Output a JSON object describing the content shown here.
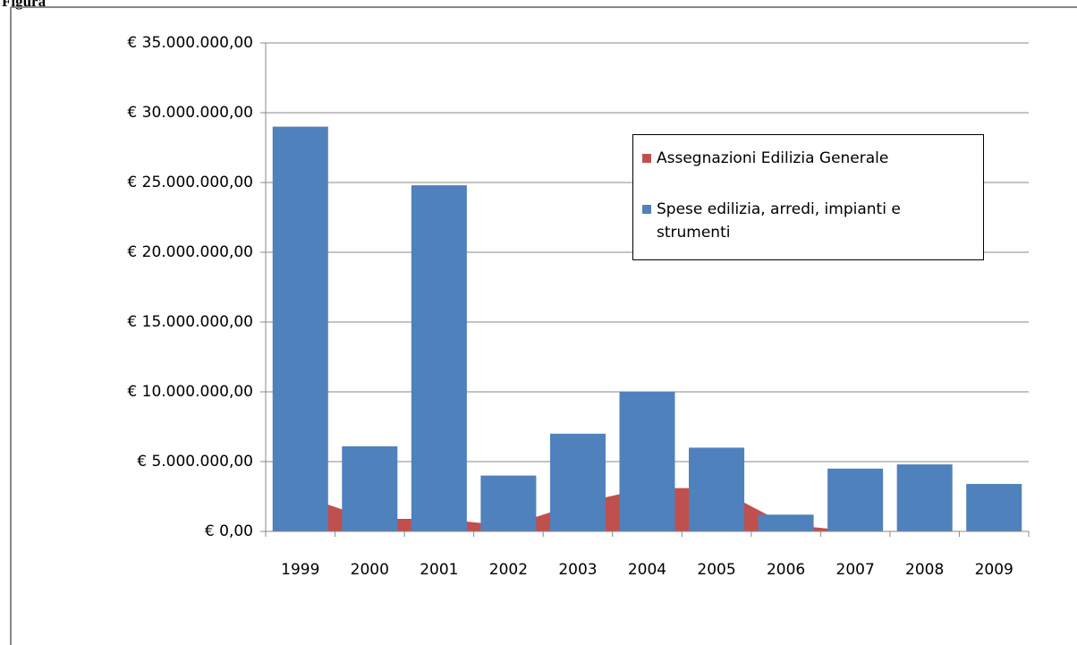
{
  "caption": "Figura",
  "chart_data": {
    "type": "bar",
    "categories": [
      "1999",
      "2000",
      "2001",
      "2002",
      "2003",
      "2004",
      "2005",
      "2006",
      "2007",
      "2008",
      "2009"
    ],
    "series": [
      {
        "name": "Assegnazioni  Edilizia  Generale",
        "color": "#c0504d",
        "type": "area",
        "values": [
          2600000,
          900000,
          900000,
          400000,
          2000000,
          3100000,
          3100000,
          500000,
          0,
          0,
          0
        ]
      },
      {
        "name": "Spese edilizia, arredi, impianti e strumenti",
        "color": "#4f81bd",
        "type": "bar",
        "values": [
          29000000,
          6100000,
          24800000,
          4000000,
          7000000,
          10000000,
          6000000,
          1200000,
          4500000,
          4800000,
          3400000
        ]
      }
    ],
    "ylim": [
      0,
      35000000
    ],
    "yticks": [
      {
        "value": 0,
        "label": "€ 0,00"
      },
      {
        "value": 5000000,
        "label": "€ 5.000.000,00"
      },
      {
        "value": 10000000,
        "label": "€ 10.000.000,00"
      },
      {
        "value": 15000000,
        "label": "€ 15.000.000,00"
      },
      {
        "value": 20000000,
        "label": "€ 20.000.000,00"
      },
      {
        "value": 25000000,
        "label": "€ 25.000.000,00"
      },
      {
        "value": 30000000,
        "label": "€ 30.000.000,00"
      },
      {
        "value": 35000000,
        "label": "€ 35.000.000,00"
      }
    ],
    "grid": true
  }
}
